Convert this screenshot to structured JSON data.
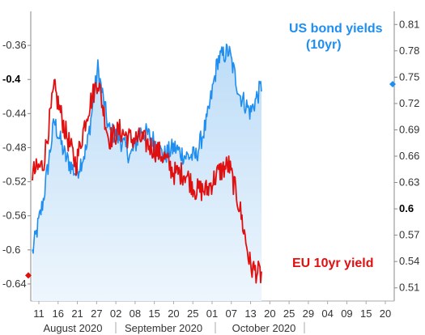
{
  "chart_data": {
    "type": "line",
    "title": "",
    "colors": {
      "us": "#1f8ef1",
      "eu": "#e01010",
      "us_fill_top": "#bcdcf7",
      "us_fill_bottom": "#eef6fd"
    },
    "x_ticks": [
      "11",
      "16",
      "21",
      "27",
      "02",
      "08",
      "15",
      "20",
      "25",
      "01",
      "07",
      "13",
      "20",
      "25",
      "29",
      "04",
      "09",
      "15",
      "20"
    ],
    "months": [
      "August 2020",
      "September 2020",
      "October 2020"
    ],
    "left_axis": {
      "series": "EU 10yr yield",
      "range": [
        -0.66,
        -0.32
      ],
      "ticks": [
        "-0.36",
        "-0.4",
        "-0.44",
        "-0.48",
        "-0.52",
        "-0.56",
        "-0.6",
        "-0.64"
      ],
      "bold_tick": "-0.4"
    },
    "right_axis": {
      "series": "US bond yields (10yr)",
      "range": [
        0.495,
        0.825
      ],
      "ticks": [
        "0.81",
        "0.78",
        "0.75",
        "0.72",
        "0.69",
        "0.66",
        "0.63",
        "0.6",
        "0.57",
        "0.54",
        "0.51"
      ],
      "bold_tick": "0.6"
    },
    "annotations": {
      "us_line1": "US bond yields",
      "us_line2": "(10yr)",
      "eu": "EU 10yr yield"
    },
    "series": [
      {
        "name": "US bond yields (10yr)",
        "axis": "right",
        "x": [
          "Aug 6",
          "Aug 10",
          "Aug 13",
          "Aug 17",
          "Aug 20",
          "Aug 24",
          "Aug 27",
          "Aug 31",
          "Sep 3",
          "Sep 8",
          "Sep 11",
          "Sep 15",
          "Sep 18",
          "Sep 22",
          "Sep 25",
          "Sep 29",
          "Oct 2",
          "Oct 6",
          "Oct 9",
          "Oct 13",
          "Oct 16",
          "Oct 19"
        ],
        "values": [
          0.55,
          0.61,
          0.7,
          0.66,
          0.64,
          0.67,
          0.76,
          0.69,
          0.68,
          0.66,
          0.69,
          0.68,
          0.66,
          0.67,
          0.66,
          0.66,
          0.7,
          0.77,
          0.78,
          0.73,
          0.71,
          0.74
        ]
      },
      {
        "name": "EU 10yr yield",
        "axis": "left",
        "x": [
          "Aug 6",
          "Aug 10",
          "Aug 13",
          "Aug 17",
          "Aug 20",
          "Aug 24",
          "Aug 27",
          "Aug 31",
          "Sep 3",
          "Sep 8",
          "Sep 11",
          "Sep 15",
          "Sep 18",
          "Sep 22",
          "Sep 25",
          "Sep 29",
          "Oct 2",
          "Oct 6",
          "Oct 9",
          "Oct 13",
          "Oct 16",
          "Oct 19"
        ],
        "values": [
          -0.51,
          -0.5,
          -0.41,
          -0.46,
          -0.5,
          -0.44,
          -0.4,
          -0.47,
          -0.46,
          -0.47,
          -0.47,
          -0.48,
          -0.49,
          -0.51,
          -0.51,
          -0.53,
          -0.53,
          -0.51,
          -0.5,
          -0.55,
          -0.62,
          -0.63
        ]
      }
    ],
    "left_marker_value": -0.63,
    "right_marker_value": 0.742
  }
}
